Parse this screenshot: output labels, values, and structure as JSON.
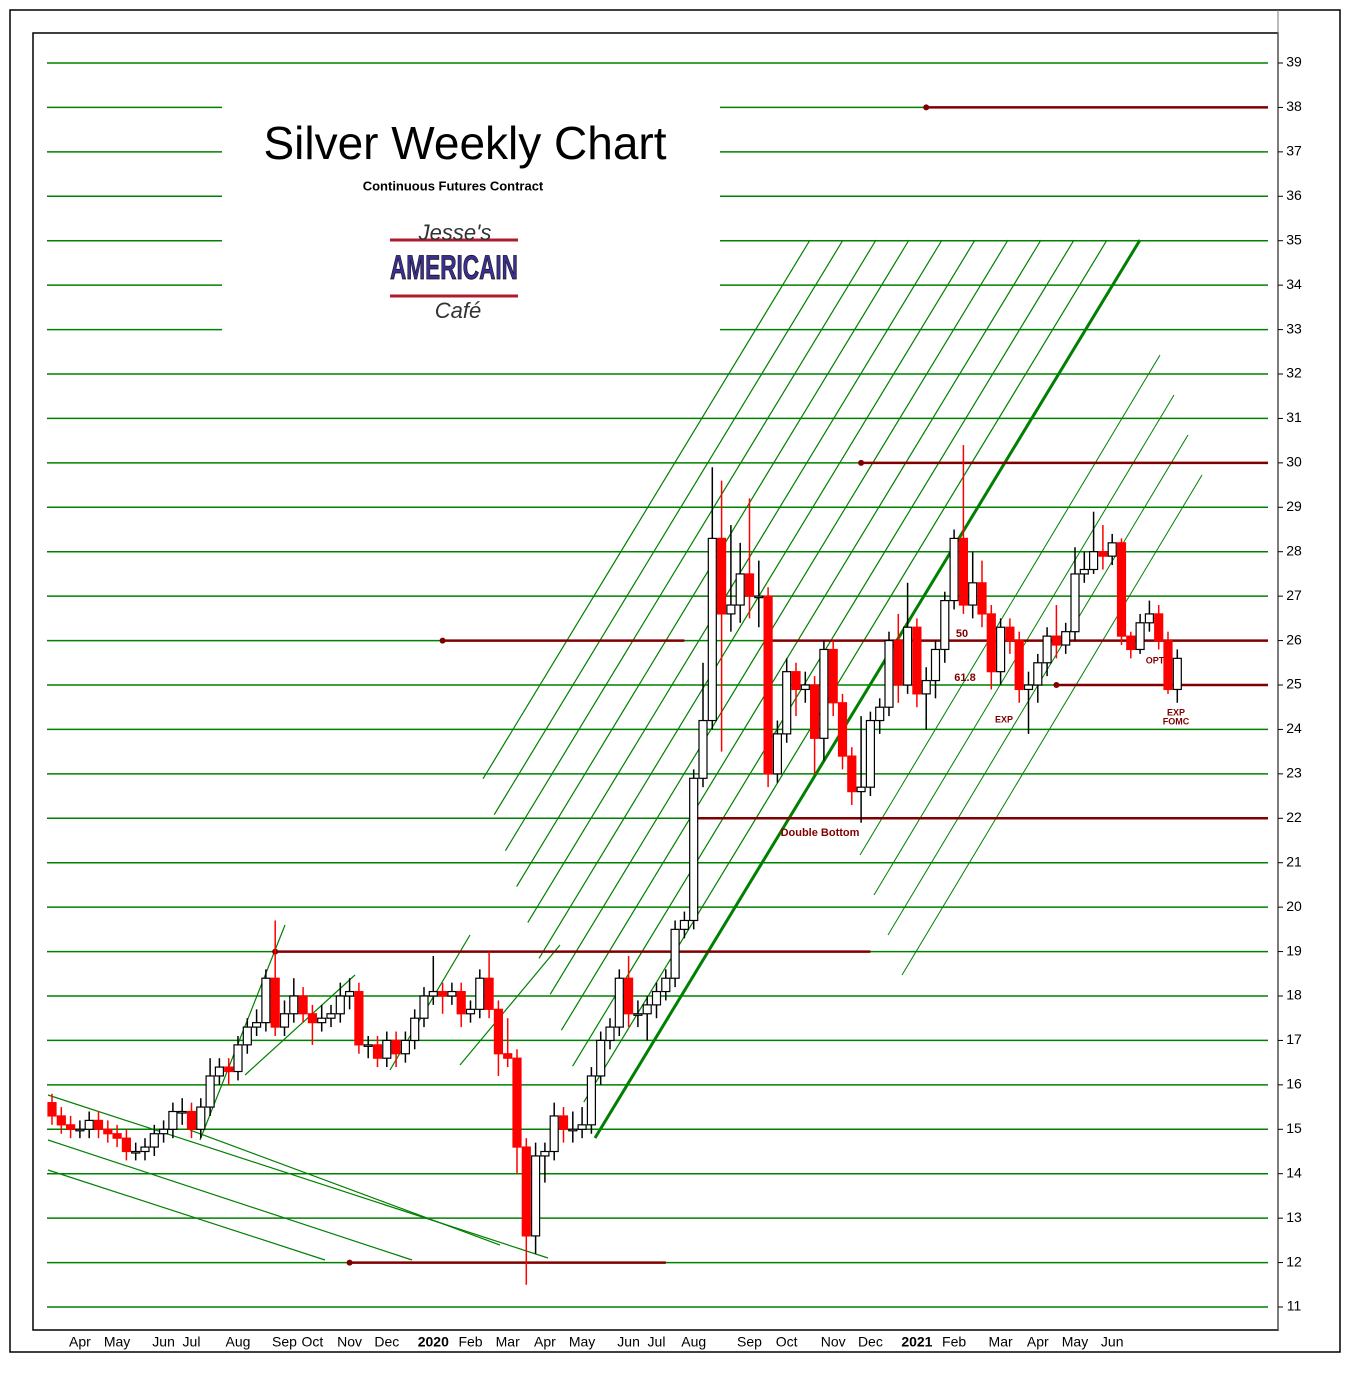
{
  "chart_data": {
    "type": "candlestick",
    "title": "Silver Weekly Chart",
    "subtitle": "Continuous Futures Contract",
    "logo": [
      "Jesse's",
      "AMERICAIN",
      "Café"
    ],
    "categories": [
      null,
      null,
      null,
      "Apr",
      null,
      null,
      null,
      "May",
      null,
      null,
      null,
      null,
      "Jun",
      null,
      null,
      "Jul",
      null,
      null,
      null,
      null,
      "Aug",
      null,
      null,
      null,
      null,
      "Sep",
      null,
      null,
      "Oct",
      null,
      null,
      null,
      "Nov",
      null,
      null,
      null,
      "Dec",
      null,
      null,
      null,
      null,
      "2020",
      null,
      null,
      null,
      "Feb",
      null,
      null,
      null,
      "Mar",
      null,
      null,
      null,
      "Apr",
      null,
      null,
      null,
      "May",
      null,
      null,
      null,
      null,
      "Jun",
      null,
      null,
      "Jul",
      null,
      null,
      null,
      "Aug",
      null,
      null,
      null,
      null,
      null,
      "Sep",
      null,
      null,
      null,
      "Oct",
      null,
      null,
      null,
      null,
      "Nov",
      null,
      null,
      null,
      "Dec",
      null,
      null,
      null,
      null,
      "2021",
      null,
      null,
      null,
      "Feb",
      null,
      null,
      null,
      null,
      "Mar",
      null,
      null,
      null,
      "Apr",
      null,
      null,
      null,
      "May",
      null,
      null,
      null,
      "Jun",
      null,
      null,
      null,
      null,
      null,
      null,
      null
    ],
    "open": [
      15.6,
      15.3,
      15.1,
      15.0,
      15.0,
      15.2,
      15.0,
      14.9,
      14.8,
      14.5,
      14.5,
      14.6,
      14.9,
      15.0,
      15.4,
      15.4,
      15.0,
      15.5,
      16.2,
      16.4,
      16.3,
      16.9,
      17.3,
      17.4,
      18.4,
      17.3,
      17.6,
      18.0,
      17.6,
      17.4,
      17.5,
      17.6,
      18.0,
      18.1,
      16.9,
      16.9,
      16.6,
      17.0,
      16.7,
      17.0,
      17.5,
      18.0,
      18.1,
      18.0,
      18.1,
      17.6,
      17.7,
      18.4,
      17.7,
      16.7,
      16.6,
      14.6,
      12.6,
      14.4,
      14.5,
      15.3,
      15.0,
      15.0,
      15.1,
      16.2,
      17.0,
      17.3,
      18.4,
      17.6,
      17.6,
      17.8,
      18.1,
      18.4,
      19.5,
      19.7,
      22.9,
      24.2,
      28.3,
      26.6,
      26.8,
      27.5,
      27.0,
      27.0,
      23.0,
      23.9,
      25.3,
      24.9,
      25.0,
      23.8,
      25.8,
      24.6,
      23.4,
      22.6,
      22.7,
      24.2,
      24.5,
      26.0,
      25.0,
      26.3,
      24.8,
      25.1,
      25.8,
      26.9,
      28.3,
      26.8,
      27.3,
      26.6,
      25.3,
      26.3,
      26.0,
      24.9,
      25.0,
      25.5,
      26.1,
      25.9,
      26.2,
      27.5,
      27.6,
      28.0,
      27.9,
      28.2,
      26.1,
      25.8,
      26.4,
      26.6,
      26.0,
      24.9
    ],
    "high": [
      15.8,
      15.5,
      15.3,
      15.2,
      15.4,
      15.4,
      15.2,
      15.1,
      15.0,
      14.7,
      14.8,
      15.1,
      15.2,
      15.6,
      15.7,
      15.6,
      15.7,
      16.6,
      16.6,
      16.6,
      17.1,
      17.5,
      17.7,
      18.6,
      19.7,
      17.9,
      18.4,
      18.2,
      17.8,
      17.8,
      17.8,
      18.3,
      18.4,
      18.3,
      17.1,
      17.1,
      17.2,
      17.2,
      17.2,
      17.7,
      18.2,
      18.9,
      18.3,
      18.3,
      18.3,
      17.9,
      18.6,
      19.0,
      17.9,
      17.5,
      16.8,
      14.8,
      14.7,
      14.7,
      15.6,
      15.5,
      15.4,
      15.5,
      16.4,
      17.2,
      17.5,
      18.6,
      18.9,
      17.9,
      18.0,
      18.3,
      18.6,
      19.7,
      19.9,
      23.1,
      25.5,
      29.9,
      29.6,
      28.6,
      28.2,
      29.2,
      27.8,
      27.2,
      24.2,
      25.6,
      25.5,
      25.3,
      25.2,
      26.0,
      26.0,
      24.8,
      23.6,
      24.3,
      24.4,
      24.7,
      26.2,
      26.6,
      27.3,
      26.5,
      25.4,
      26.0,
      27.1,
      28.5,
      30.4,
      28.0,
      27.8,
      26.8,
      26.5,
      26.5,
      26.2,
      25.3,
      25.7,
      26.3,
      26.8,
      26.4,
      28.1,
      28.0,
      28.9,
      28.6,
      28.4,
      28.3,
      26.2,
      26.6,
      26.9,
      26.8,
      26.2,
      25.8
    ],
    "low": [
      15.1,
      14.9,
      14.8,
      14.8,
      14.8,
      14.8,
      14.7,
      14.6,
      14.3,
      14.3,
      14.3,
      14.4,
      14.7,
      14.8,
      15.1,
      14.8,
      14.8,
      15.3,
      16.0,
      16.0,
      16.1,
      16.7,
      17.1,
      17.2,
      17.1,
      17.1,
      17.4,
      17.4,
      16.9,
      17.2,
      17.3,
      17.4,
      17.7,
      16.7,
      16.6,
      16.4,
      16.4,
      16.4,
      16.5,
      16.8,
      17.3,
      17.8,
      17.6,
      17.8,
      17.3,
      17.4,
      17.5,
      17.5,
      16.2,
      16.4,
      14.0,
      11.5,
      12.2,
      13.8,
      14.3,
      14.7,
      14.7,
      14.8,
      14.9,
      16.0,
      16.8,
      17.1,
      17.3,
      17.3,
      17.0,
      17.5,
      17.9,
      18.2,
      19.3,
      19.5,
      22.7,
      24.0,
      23.5,
      26.2,
      26.4,
      26.5,
      26.3,
      22.7,
      22.8,
      23.7,
      24.3,
      24.6,
      23.0,
      23.3,
      24.3,
      23.1,
      22.3,
      21.9,
      22.5,
      23.9,
      24.3,
      24.6,
      24.8,
      24.5,
      24.0,
      24.7,
      25.5,
      26.7,
      26.6,
      26.5,
      26.3,
      24.9,
      25.0,
      25.7,
      24.6,
      23.9,
      24.6,
      25.2,
      25.6,
      25.7,
      26.0,
      27.3,
      27.5,
      27.6,
      27.7,
      25.9,
      25.6,
      25.7,
      26.2,
      25.8,
      24.8,
      24.6
    ],
    "close": [
      15.3,
      15.1,
      15.0,
      15.0,
      15.2,
      15.0,
      14.9,
      14.8,
      14.5,
      14.5,
      14.6,
      14.9,
      15.0,
      15.4,
      15.4,
      15.0,
      15.5,
      16.2,
      16.4,
      16.3,
      16.9,
      17.3,
      17.4,
      18.4,
      17.3,
      17.6,
      18.0,
      17.6,
      17.4,
      17.5,
      17.6,
      18.0,
      18.1,
      16.9,
      16.9,
      16.6,
      17.0,
      16.7,
      17.0,
      17.5,
      18.0,
      18.1,
      18.0,
      18.1,
      17.6,
      17.7,
      18.4,
      17.7,
      16.7,
      16.6,
      14.6,
      12.6,
      14.4,
      14.5,
      15.3,
      15.0,
      15.0,
      15.1,
      16.2,
      17.0,
      17.3,
      18.4,
      17.6,
      17.6,
      17.8,
      18.1,
      18.4,
      19.5,
      19.7,
      22.9,
      24.2,
      28.3,
      26.6,
      26.8,
      27.5,
      27.0,
      27.0,
      23.0,
      23.9,
      25.3,
      24.9,
      25.0,
      23.8,
      25.8,
      24.6,
      23.4,
      22.6,
      22.7,
      24.2,
      24.5,
      26.0,
      25.0,
      26.3,
      24.8,
      25.1,
      25.8,
      26.9,
      28.3,
      26.8,
      27.3,
      26.6,
      25.3,
      26.3,
      26.0,
      24.9,
      25.0,
      25.5,
      26.1,
      25.9,
      26.2,
      27.5,
      27.6,
      28.0,
      27.9,
      28.2,
      26.1,
      25.8,
      26.4,
      26.6,
      26.0,
      24.9,
      25.6
    ],
    "up_color": "#ffffff",
    "down_color": "#ff0000",
    "grid": true,
    "grid_color": "#008000",
    "ylim": [
      11,
      39
    ],
    "yticks": [
      11,
      12,
      13,
      14,
      15,
      16,
      17,
      18,
      19,
      20,
      21,
      22,
      23,
      24,
      25,
      26,
      27,
      28,
      29,
      30,
      31,
      32,
      33,
      34,
      35,
      36,
      37,
      38,
      39
    ],
    "levels": [
      {
        "value": 38,
        "start": 94,
        "end": 121,
        "color": "#800000"
      },
      {
        "value": 30,
        "start": 87,
        "end": 121,
        "color": "#800000"
      },
      {
        "value": 26,
        "start": 42,
        "end": 68,
        "color": "#800000"
      },
      {
        "value": 26,
        "start": 77,
        "end": 121,
        "color": "#800000"
      },
      {
        "value": 25,
        "start": 108,
        "end": 121,
        "color": "#800000"
      },
      {
        "value": 22,
        "start": 69,
        "end": 121,
        "color": "#800000"
      },
      {
        "value": 19,
        "start": 24,
        "end": 88,
        "color": "#800000"
      },
      {
        "value": 12,
        "start": 32,
        "end": 66,
        "color": "#800000"
      }
    ],
    "annotations": [
      "Double Bottom",
      "50",
      "61.8",
      "EXP",
      "OPT",
      "EXP",
      "FOMC"
    ]
  }
}
